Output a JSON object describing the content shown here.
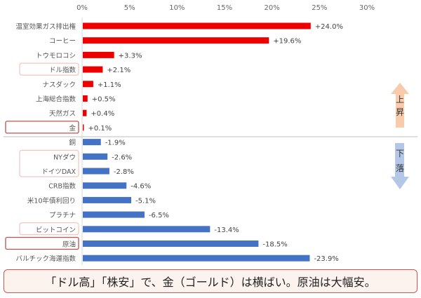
{
  "chart_data": {
    "type": "bar",
    "orientation": "horizontal",
    "xlim": [
      0,
      30
    ],
    "x_ticks": [
      "0%",
      "5%",
      "10%",
      "15%",
      "20%",
      "25%",
      "30%"
    ],
    "categories": [
      "温室効果ガス排出権",
      "コーヒー",
      "トウモロコシ",
      "ドル指数",
      "ナスダック",
      "上海総合指数",
      "天然ガス",
      "金",
      "銅",
      "NYダウ",
      "ドイツDAX",
      "CRB指数",
      "米10年債利回り",
      "プラチナ",
      "ビットコイン",
      "原油",
      "バルチック海運指数"
    ],
    "values": [
      24.0,
      19.6,
      3.3,
      2.1,
      1.1,
      0.5,
      0.4,
      0.1,
      -1.9,
      -2.6,
      -2.8,
      -4.6,
      -5.1,
      -6.5,
      -13.4,
      -18.5,
      -23.9
    ],
    "data_labels": [
      "+24.0%",
      "+19.6%",
      "+3.3%",
      "+2.1%",
      "+1.1%",
      "+0.5%",
      "+0.4%",
      "+0.1%",
      "-1.9%",
      "-2.6%",
      "-2.8%",
      "-4.6%",
      "-5.1%",
      "-6.5%",
      "-13.4%",
      "-18.5%",
      "-23.9%"
    ],
    "highlight_strong": [
      "金",
      "原油"
    ],
    "highlight_light": [
      "ドル指数",
      "NYダウ",
      "ドイツDAX",
      "ビットコイン"
    ],
    "colors": {
      "up": "#ee0000",
      "down": "#4472c4"
    }
  },
  "arrows": {
    "up_label": "上昇",
    "down_label": "下落",
    "up_color": "#f8cbad",
    "down_color": "#b4c7e7"
  },
  "caption": "「ドル高」「株安」で、金（ゴールド）は横ばい。原油は大幅安。"
}
